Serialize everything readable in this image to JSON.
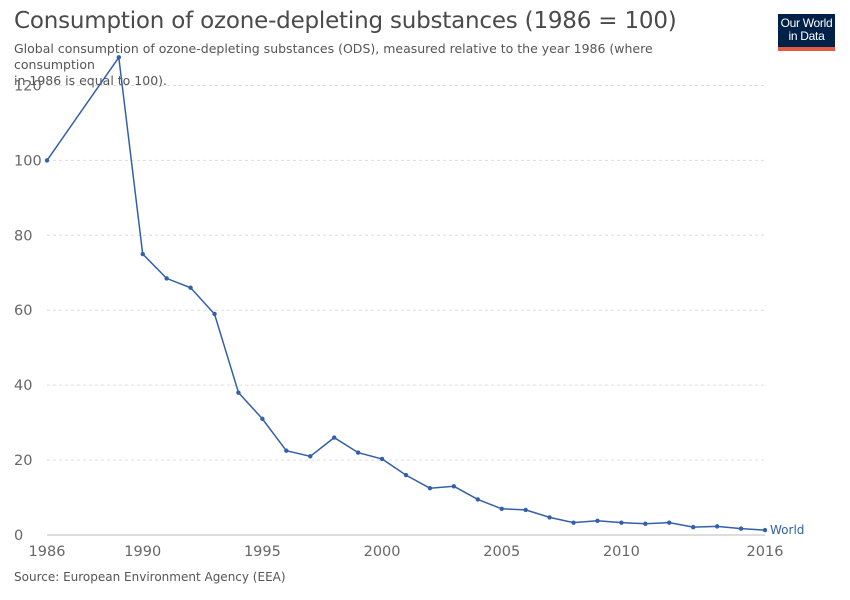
{
  "header": {
    "title": "Consumption of ozone-depleting substances (1986 = 100)",
    "subtitle_line1": "Global consumption of ozone-depleting substances (ODS), measured relative to the year 1986 (where consumption",
    "subtitle_line2": "in 1986 is equal to 100).",
    "logo_line1": "Our World",
    "logo_line2": "in Data"
  },
  "footer": {
    "source": "Source: European Environment Agency (EEA)"
  },
  "colors": {
    "series": "#3360a9",
    "grid": "#dddddd",
    "logo_bg": "#002147",
    "logo_accent": "#e45a41"
  },
  "chart_data": {
    "type": "line",
    "title": "Consumption of ozone-depleting substances (1986 = 100)",
    "xlabel": "",
    "ylabel": "",
    "xlim": [
      1986,
      2016
    ],
    "ylim": [
      0,
      130
    ],
    "x_ticks": [
      1986,
      1990,
      1995,
      2000,
      2005,
      2010,
      2016
    ],
    "y_ticks": [
      0,
      20,
      40,
      60,
      80,
      100,
      120
    ],
    "grid": "horizontal-dashed",
    "series": [
      {
        "name": "World",
        "x": [
          1986,
          1989,
          1990,
          1991,
          1992,
          1993,
          1994,
          1995,
          1996,
          1997,
          1998,
          1999,
          2000,
          2001,
          2002,
          2003,
          2004,
          2005,
          2006,
          2007,
          2008,
          2009,
          2010,
          2011,
          2012,
          2013,
          2014,
          2015,
          2016
        ],
        "y": [
          100,
          127.5,
          75,
          68.5,
          66,
          59,
          38,
          31,
          22.5,
          21,
          26,
          22,
          20.3,
          16,
          12.5,
          13,
          9.5,
          7,
          6.7,
          4.7,
          3.3,
          3.8,
          3.3,
          3,
          3.3,
          2.1,
          2.3,
          1.7,
          1.3
        ]
      }
    ]
  }
}
